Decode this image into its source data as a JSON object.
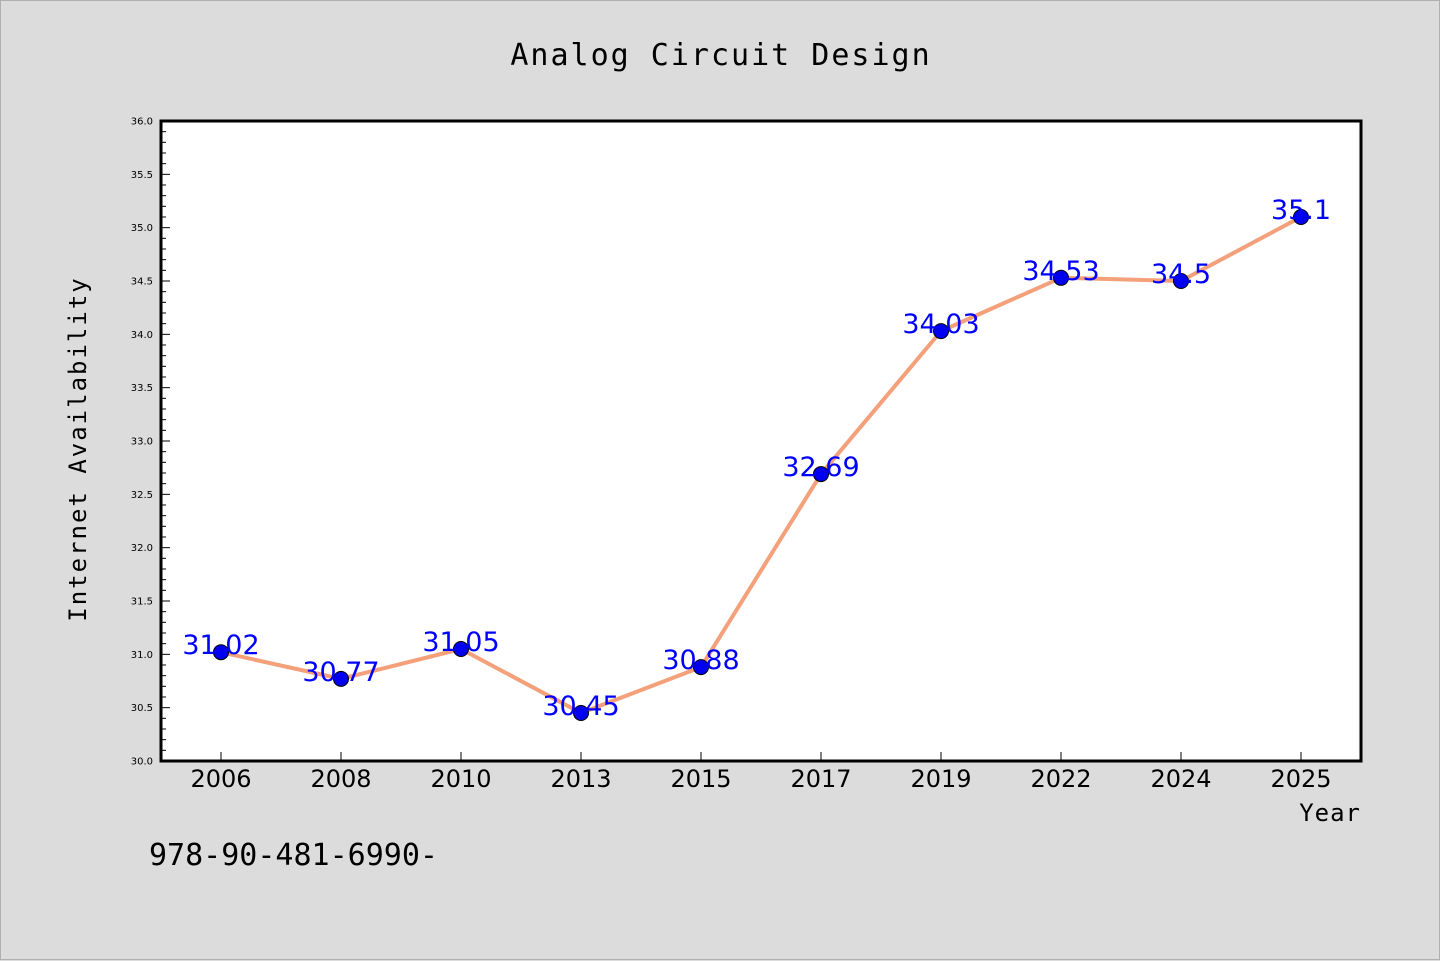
{
  "chart_data": {
    "type": "line",
    "title": "Analog Circuit Design",
    "xlabel": "Year",
    "ylabel": "Internet Availability",
    "categories": [
      "2006",
      "2008",
      "2010",
      "2013",
      "2015",
      "2017",
      "2019",
      "2022",
      "2024",
      "2025"
    ],
    "series": [
      {
        "values": [
          31.02,
          30.77,
          31.05,
          30.45,
          30.88,
          32.69,
          34.03,
          34.53,
          34.5,
          35.1
        ],
        "data_labels": [
          "31.02",
          "30.77",
          "31.05",
          "30.45",
          "30.88",
          "32.69",
          "34.03",
          "34.53",
          "34.5",
          "35.1"
        ],
        "line_color": "#f4a07a",
        "marker_color": "#0000ee",
        "label_color": "#0000ff"
      }
    ],
    "ylim": [
      30.0,
      36.0
    ],
    "yticks": [
      "30.0",
      "30.5",
      "31.0",
      "31.5",
      "32.0",
      "32.5",
      "33.0",
      "33.5",
      "34.0",
      "34.5",
      "35.0",
      "35.5",
      "36.0"
    ],
    "grid": false,
    "legend": "none"
  },
  "footer_text": "978-90-481-6990-",
  "colors": {
    "background": "#dcdcdc",
    "plot_area": "#ffffff",
    "axis": "#000000",
    "text": "#000000"
  }
}
